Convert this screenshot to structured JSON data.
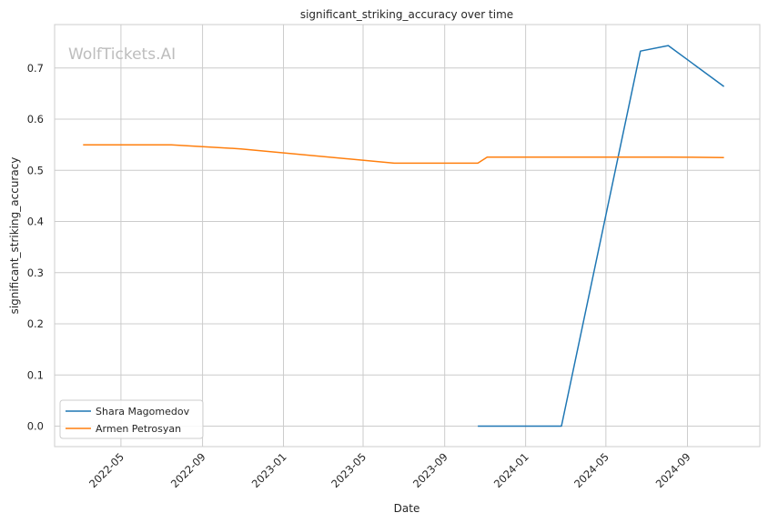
{
  "chart_data": {
    "type": "line",
    "title": "significant_striking_accuracy over time",
    "xlabel": "Date",
    "ylabel": "significant_striking_accuracy",
    "watermark": "WolfTickets.AI",
    "xlim": [
      "2022-01-21",
      "2024-12-19"
    ],
    "ylim": [
      -0.04,
      0.785
    ],
    "x_ticks": [
      "2022-05-01",
      "2022-09-01",
      "2023-01-01",
      "2023-05-01",
      "2023-09-01",
      "2024-01-01",
      "2024-05-01",
      "2024-09-01"
    ],
    "x_tick_labels": [
      "2022-05",
      "2022-09",
      "2023-01",
      "2023-05",
      "2023-09",
      "2024-01",
      "2024-05",
      "2024-09"
    ],
    "y_ticks": [
      0.0,
      0.1,
      0.2,
      0.3,
      0.4,
      0.5,
      0.6,
      0.7
    ],
    "y_tick_labels": [
      "0.0",
      "0.1",
      "0.2",
      "0.3",
      "0.4",
      "0.5",
      "0.6",
      "0.7"
    ],
    "grid": true,
    "legend_position": "lower-left",
    "series": [
      {
        "name": "Shara Magomedov",
        "color": "#1f77b4",
        "points": [
          {
            "x": "2023-10-21",
            "y": 0.0
          },
          {
            "x": "2024-02-24",
            "y": 0.0
          },
          {
            "x": "2024-06-22",
            "y": 0.733
          },
          {
            "x": "2024-08-03",
            "y": 0.744
          },
          {
            "x": "2024-10-26",
            "y": 0.664
          }
        ]
      },
      {
        "name": "Armen Petrosyan",
        "color": "#ff7f0e",
        "points": [
          {
            "x": "2022-03-05",
            "y": 0.55
          },
          {
            "x": "2022-07-16",
            "y": 0.55
          },
          {
            "x": "2022-10-29",
            "y": 0.542
          },
          {
            "x": "2023-06-17",
            "y": 0.514
          },
          {
            "x": "2023-10-21",
            "y": 0.514
          },
          {
            "x": "2023-11-04",
            "y": 0.526
          },
          {
            "x": "2024-08-03",
            "y": 0.526
          },
          {
            "x": "2024-10-26",
            "y": 0.525
          }
        ]
      }
    ]
  }
}
